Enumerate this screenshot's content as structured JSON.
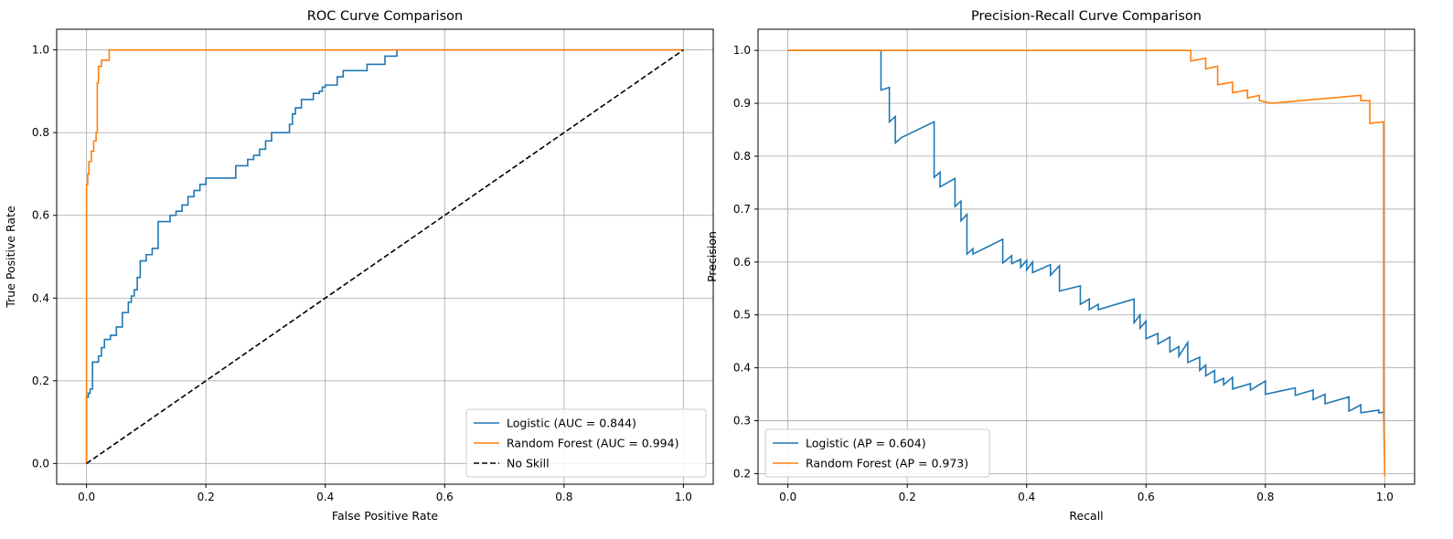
{
  "chart_data": [
    {
      "type": "line",
      "title": "ROC Curve Comparison",
      "xlabel": "False Positive Rate",
      "ylabel": "True Positive Rate",
      "xlim": [
        -0.05,
        1.05
      ],
      "ylim": [
        -0.05,
        1.05
      ],
      "xticks": [
        0.0,
        0.2,
        0.4,
        0.6,
        0.8,
        1.0
      ],
      "yticks": [
        0.0,
        0.2,
        0.4,
        0.6,
        0.8,
        1.0
      ],
      "xtick_labels": [
        "0.0",
        "0.2",
        "0.4",
        "0.6",
        "0.8",
        "1.0"
      ],
      "ytick_labels": [
        "0.0",
        "0.2",
        "0.4",
        "0.6",
        "0.8",
        "1.0"
      ],
      "grid": true,
      "legend_position": "lower-right",
      "series": [
        {
          "name": "Logistic (AUC = 0.844)",
          "color": "#1f77b4",
          "dash": "solid",
          "step": true,
          "x": [
            0.0,
            0.0,
            0.003,
            0.003,
            0.006,
            0.006,
            0.01,
            0.01,
            0.02,
            0.02,
            0.025,
            0.025,
            0.03,
            0.03,
            0.04,
            0.04,
            0.05,
            0.05,
            0.06,
            0.06,
            0.07,
            0.07,
            0.075,
            0.075,
            0.08,
            0.08,
            0.085,
            0.085,
            0.09,
            0.09,
            0.1,
            0.1,
            0.11,
            0.11,
            0.12,
            0.12,
            0.14,
            0.14,
            0.15,
            0.15,
            0.16,
            0.16,
            0.17,
            0.17,
            0.18,
            0.18,
            0.19,
            0.19,
            0.2,
            0.2,
            0.25,
            0.25,
            0.27,
            0.27,
            0.28,
            0.28,
            0.29,
            0.29,
            0.3,
            0.3,
            0.31,
            0.31,
            0.34,
            0.34,
            0.345,
            0.345,
            0.35,
            0.35,
            0.36,
            0.36,
            0.38,
            0.38,
            0.39,
            0.39,
            0.395,
            0.395,
            0.4,
            0.4,
            0.42,
            0.42,
            0.43,
            0.43,
            0.47,
            0.47,
            0.5,
            0.5,
            0.52,
            0.52,
            1.0
          ],
          "y": [
            0.0,
            0.16,
            0.16,
            0.17,
            0.17,
            0.18,
            0.18,
            0.245,
            0.245,
            0.26,
            0.26,
            0.28,
            0.28,
            0.3,
            0.3,
            0.31,
            0.31,
            0.33,
            0.33,
            0.365,
            0.365,
            0.39,
            0.39,
            0.405,
            0.405,
            0.42,
            0.42,
            0.45,
            0.45,
            0.49,
            0.49,
            0.505,
            0.505,
            0.52,
            0.52,
            0.585,
            0.585,
            0.6,
            0.6,
            0.61,
            0.61,
            0.625,
            0.625,
            0.645,
            0.645,
            0.66,
            0.66,
            0.675,
            0.675,
            0.69,
            0.69,
            0.72,
            0.72,
            0.735,
            0.735,
            0.745,
            0.745,
            0.76,
            0.76,
            0.78,
            0.78,
            0.8,
            0.8,
            0.82,
            0.82,
            0.845,
            0.845,
            0.86,
            0.86,
            0.88,
            0.88,
            0.895,
            0.895,
            0.9,
            0.9,
            0.91,
            0.91,
            0.915,
            0.915,
            0.935,
            0.935,
            0.95,
            0.95,
            0.965,
            0.965,
            0.985,
            0.985,
            1.0,
            1.0
          ]
        },
        {
          "name": "Random Forest (AUC = 0.994)",
          "color": "#ff7f0e",
          "dash": "solid",
          "step": true,
          "x": [
            0.0,
            0.0,
            0.002,
            0.002,
            0.004,
            0.004,
            0.008,
            0.008,
            0.012,
            0.012,
            0.016,
            0.016,
            0.018,
            0.018,
            0.02,
            0.02,
            0.025,
            0.025,
            0.038,
            0.038,
            1.0
          ],
          "y": [
            0.0,
            0.675,
            0.675,
            0.7,
            0.7,
            0.73,
            0.73,
            0.755,
            0.755,
            0.78,
            0.78,
            0.8,
            0.8,
            0.92,
            0.92,
            0.96,
            0.96,
            0.975,
            0.975,
            1.0,
            1.0
          ]
        },
        {
          "name": "No Skill",
          "color": "#000000",
          "dash": "dashed",
          "step": false,
          "x": [
            0.0,
            1.0
          ],
          "y": [
            0.0,
            1.0
          ]
        }
      ]
    },
    {
      "type": "line",
      "title": "Precision-Recall Curve Comparison",
      "xlabel": "Recall",
      "ylabel": "Precision",
      "xlim": [
        -0.05,
        1.05
      ],
      "ylim": [
        0.18,
        1.04
      ],
      "xticks": [
        0.0,
        0.2,
        0.4,
        0.6,
        0.8,
        1.0
      ],
      "yticks": [
        0.2,
        0.3,
        0.4,
        0.5,
        0.6,
        0.7,
        0.8,
        0.9,
        1.0
      ],
      "xtick_labels": [
        "0.0",
        "0.2",
        "0.4",
        "0.6",
        "0.8",
        "1.0"
      ],
      "ytick_labels": [
        "0.2",
        "0.3",
        "0.4",
        "0.5",
        "0.6",
        "0.7",
        "0.8",
        "0.9",
        "1.0"
      ],
      "grid": true,
      "legend_position": "lower-left",
      "series": [
        {
          "name": "Logistic (AP = 0.604)",
          "color": "#1f77b4",
          "dash": "solid",
          "step": false,
          "x": [
            0.0,
            0.156,
            0.156,
            0.17,
            0.17,
            0.18,
            0.18,
            0.19,
            0.245,
            0.245,
            0.255,
            0.255,
            0.28,
            0.28,
            0.29,
            0.29,
            0.3,
            0.3,
            0.31,
            0.31,
            0.36,
            0.36,
            0.375,
            0.375,
            0.39,
            0.39,
            0.4,
            0.4,
            0.41,
            0.41,
            0.44,
            0.44,
            0.455,
            0.455,
            0.49,
            0.49,
            0.505,
            0.505,
            0.52,
            0.52,
            0.58,
            0.58,
            0.59,
            0.59,
            0.6,
            0.6,
            0.62,
            0.62,
            0.64,
            0.64,
            0.655,
            0.655,
            0.67,
            0.67,
            0.69,
            0.69,
            0.7,
            0.7,
            0.715,
            0.715,
            0.73,
            0.73,
            0.745,
            0.745,
            0.775,
            0.775,
            0.8,
            0.8,
            0.85,
            0.85,
            0.88,
            0.88,
            0.9,
            0.9,
            0.94,
            0.94,
            0.96,
            0.96,
            0.99,
            0.99,
            1.0
          ],
          "y": [
            1.0,
            1.0,
            0.925,
            0.93,
            0.865,
            0.875,
            0.825,
            0.835,
            0.865,
            0.76,
            0.77,
            0.742,
            0.758,
            0.705,
            0.715,
            0.678,
            0.69,
            0.615,
            0.625,
            0.615,
            0.643,
            0.598,
            0.612,
            0.597,
            0.605,
            0.59,
            0.603,
            0.585,
            0.6,
            0.58,
            0.595,
            0.575,
            0.593,
            0.545,
            0.555,
            0.52,
            0.53,
            0.51,
            0.52,
            0.51,
            0.53,
            0.485,
            0.5,
            0.475,
            0.488,
            0.455,
            0.465,
            0.445,
            0.458,
            0.43,
            0.44,
            0.422,
            0.448,
            0.41,
            0.42,
            0.395,
            0.405,
            0.385,
            0.395,
            0.372,
            0.38,
            0.368,
            0.382,
            0.36,
            0.37,
            0.358,
            0.375,
            0.35,
            0.362,
            0.348,
            0.358,
            0.34,
            0.35,
            0.332,
            0.345,
            0.318,
            0.33,
            0.315,
            0.32,
            0.315,
            0.316
          ]
        },
        {
          "name": "Random Forest (AP = 0.973)",
          "color": "#ff7f0e",
          "dash": "solid",
          "step": false,
          "x": [
            0.0,
            0.675,
            0.675,
            0.7,
            0.7,
            0.72,
            0.72,
            0.745,
            0.745,
            0.77,
            0.77,
            0.79,
            0.79,
            0.81,
            0.96,
            0.96,
            0.975,
            0.975,
            0.998,
            0.998,
            1.0
          ],
          "y": [
            1.0,
            1.0,
            0.98,
            0.985,
            0.965,
            0.97,
            0.935,
            0.94,
            0.92,
            0.925,
            0.91,
            0.915,
            0.905,
            0.9,
            0.915,
            0.905,
            0.905,
            0.862,
            0.865,
            0.32,
            0.195
          ]
        }
      ]
    }
  ]
}
